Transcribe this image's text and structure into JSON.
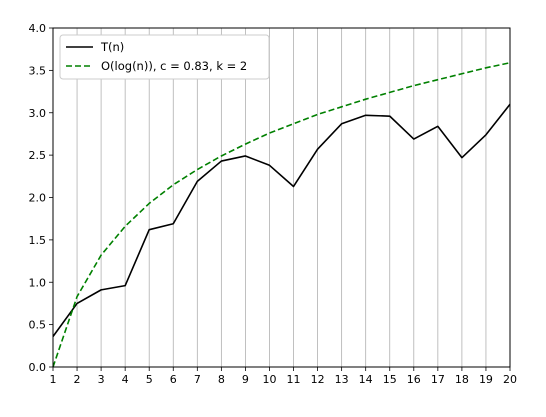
{
  "chart_data": {
    "type": "line",
    "title": "",
    "xlabel": "",
    "ylabel": "",
    "x": [
      1,
      2,
      3,
      4,
      5,
      6,
      7,
      8,
      9,
      10,
      11,
      12,
      13,
      14,
      15,
      16,
      17,
      18,
      19,
      20
    ],
    "xlim": [
      1,
      20
    ],
    "ylim": [
      0,
      4
    ],
    "x_ticks": [
      1,
      2,
      3,
      4,
      5,
      6,
      7,
      8,
      9,
      10,
      11,
      12,
      13,
      14,
      15,
      16,
      17,
      18,
      19,
      20
    ],
    "y_ticks": [
      "0.0",
      "0.5",
      "1.0",
      "1.5",
      "2.0",
      "2.5",
      "3.0",
      "3.5",
      "4.0"
    ],
    "grid": "vertical",
    "legend_position": "top-left",
    "series": [
      {
        "name": "T(n)",
        "color": "#000000",
        "style": "solid",
        "values": [
          0.36,
          0.75,
          0.91,
          0.96,
          1.62,
          1.69,
          2.19,
          2.43,
          2.49,
          2.38,
          2.13,
          2.57,
          2.87,
          2.97,
          2.96,
          2.69,
          2.84,
          2.47,
          2.74,
          3.1
        ]
      },
      {
        "name": "O(log(n)), c = 0.83, k = 2",
        "color": "#008000",
        "style": "dashed",
        "values": [
          0.0,
          0.83,
          1.32,
          1.66,
          1.93,
          2.15,
          2.33,
          2.49,
          2.63,
          2.76,
          2.87,
          2.98,
          3.07,
          3.16,
          3.24,
          3.32,
          3.39,
          3.46,
          3.53,
          3.59
        ]
      }
    ]
  }
}
